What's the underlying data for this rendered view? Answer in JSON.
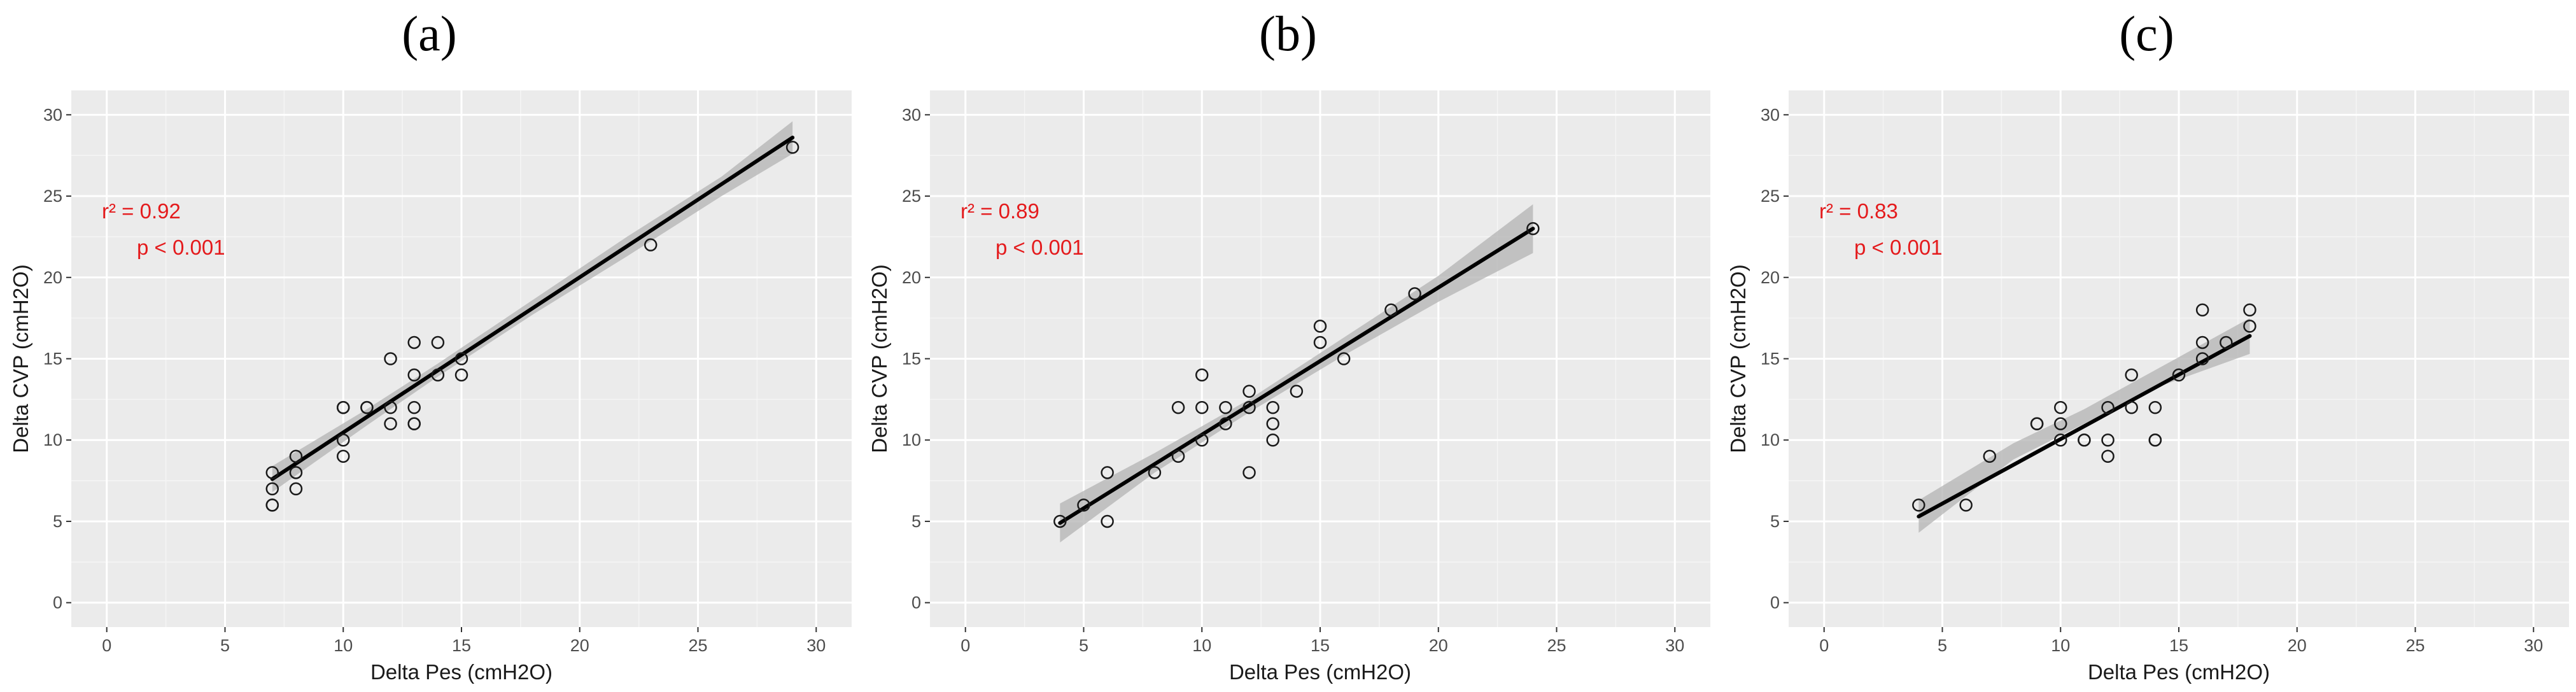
{
  "chart_data": [
    {
      "type": "scatter",
      "panel_label": "(a)",
      "xlabel": "Delta Pes (cmH2O)",
      "ylabel": "Delta CVP (cmH2O)",
      "xlim": [
        -1.5,
        31.5
      ],
      "ylim": [
        -1.5,
        31.5
      ],
      "x_ticks": [
        0,
        5,
        10,
        15,
        20,
        25,
        30
      ],
      "y_ticks": [
        0,
        5,
        10,
        15,
        20,
        25,
        30
      ],
      "grid": true,
      "annotations": {
        "r2": "r² = 0.92",
        "p": "p < 0.001"
      },
      "points": [
        [
          7,
          6
        ],
        [
          7,
          6
        ],
        [
          7,
          7
        ],
        [
          7,
          8
        ],
        [
          8,
          7
        ],
        [
          8,
          8
        ],
        [
          8,
          9
        ],
        [
          10,
          9
        ],
        [
          10,
          10
        ],
        [
          10,
          12
        ],
        [
          10,
          12
        ],
        [
          11,
          12
        ],
        [
          11,
          12
        ],
        [
          12,
          11
        ],
        [
          12,
          12
        ],
        [
          12,
          15
        ],
        [
          13,
          11
        ],
        [
          13,
          11
        ],
        [
          13,
          12
        ],
        [
          13,
          14
        ],
        [
          13,
          16
        ],
        [
          14,
          14
        ],
        [
          14,
          16
        ],
        [
          15,
          14
        ],
        [
          15,
          15
        ],
        [
          23,
          22
        ],
        [
          29,
          28
        ]
      ],
      "fit": {
        "x": [
          7,
          29
        ],
        "y": [
          7.6,
          28.6
        ]
      },
      "ci": {
        "x": [
          7,
          11,
          14,
          18,
          22,
          26,
          29
        ],
        "lower": [
          6.8,
          10.9,
          13.9,
          17.7,
          21.3,
          25.0,
          27.6
        ],
        "upper": [
          8.4,
          11.9,
          14.7,
          18.6,
          22.5,
          26.2,
          29.6
        ]
      }
    },
    {
      "type": "scatter",
      "panel_label": "(b)",
      "xlabel": "Delta Pes (cmH2O)",
      "ylabel": "Delta CVP (cmH2O)",
      "xlim": [
        -1.5,
        31.5
      ],
      "ylim": [
        -1.5,
        31.5
      ],
      "x_ticks": [
        0,
        5,
        10,
        15,
        20,
        25,
        30
      ],
      "y_ticks": [
        0,
        5,
        10,
        15,
        20,
        25,
        30
      ],
      "grid": true,
      "annotations": {
        "r2": "r² = 0.89",
        "p": "p < 0.001"
      },
      "points": [
        [
          4,
          5
        ],
        [
          5,
          6
        ],
        [
          6,
          5
        ],
        [
          6,
          8
        ],
        [
          8,
          8
        ],
        [
          9,
          9
        ],
        [
          9,
          12
        ],
        [
          10,
          10
        ],
        [
          10,
          12
        ],
        [
          10,
          14
        ],
        [
          11,
          11
        ],
        [
          11,
          12
        ],
        [
          12,
          8
        ],
        [
          12,
          12
        ],
        [
          12,
          13
        ],
        [
          13,
          10
        ],
        [
          13,
          11
        ],
        [
          13,
          12
        ],
        [
          14,
          13
        ],
        [
          15,
          16
        ],
        [
          15,
          17
        ],
        [
          16,
          15
        ],
        [
          18,
          18
        ],
        [
          19,
          19
        ],
        [
          24,
          23
        ]
      ],
      "fit": {
        "x": [
          4,
          24
        ],
        "y": [
          4.9,
          23.0
        ]
      },
      "ci": {
        "x": [
          4,
          8,
          12,
          16,
          20,
          24
        ],
        "lower": [
          3.7,
          8.0,
          11.7,
          15.2,
          18.5,
          21.5
        ],
        "upper": [
          6.1,
          9.2,
          12.5,
          16.3,
          20.1,
          24.5
        ]
      }
    },
    {
      "type": "scatter",
      "panel_label": "(c)",
      "xlabel": "Delta Pes (cmH2O)",
      "ylabel": "Delta CVP (cmH2O)",
      "xlim": [
        -1.5,
        31.5
      ],
      "ylim": [
        -1.5,
        31.5
      ],
      "x_ticks": [
        0,
        5,
        10,
        15,
        20,
        25,
        30
      ],
      "y_ticks": [
        0,
        5,
        10,
        15,
        20,
        25,
        30
      ],
      "grid": true,
      "annotations": {
        "r2": "r² = 0.83",
        "p": "p < 0.001"
      },
      "points": [
        [
          4,
          6
        ],
        [
          6,
          6
        ],
        [
          7,
          9
        ],
        [
          9,
          11
        ],
        [
          9,
          11
        ],
        [
          10,
          10
        ],
        [
          10,
          11
        ],
        [
          10,
          12
        ],
        [
          11,
          10
        ],
        [
          11,
          10
        ],
        [
          12,
          9
        ],
        [
          12,
          10
        ],
        [
          12,
          12
        ],
        [
          13,
          12
        ],
        [
          13,
          14
        ],
        [
          14,
          10
        ],
        [
          14,
          10
        ],
        [
          14,
          12
        ],
        [
          15,
          14
        ],
        [
          16,
          15
        ],
        [
          16,
          16
        ],
        [
          16,
          18
        ],
        [
          17,
          16
        ],
        [
          18,
          17
        ],
        [
          18,
          18
        ]
      ],
      "fit": {
        "x": [
          4,
          18
        ],
        "y": [
          5.3,
          16.4
        ]
      },
      "ci": {
        "x": [
          4,
          8,
          11,
          14,
          18
        ],
        "lower": [
          4.3,
          8.8,
          11.0,
          13.2,
          15.3
        ],
        "upper": [
          6.3,
          9.8,
          11.9,
          14.3,
          17.5
        ]
      }
    }
  ]
}
